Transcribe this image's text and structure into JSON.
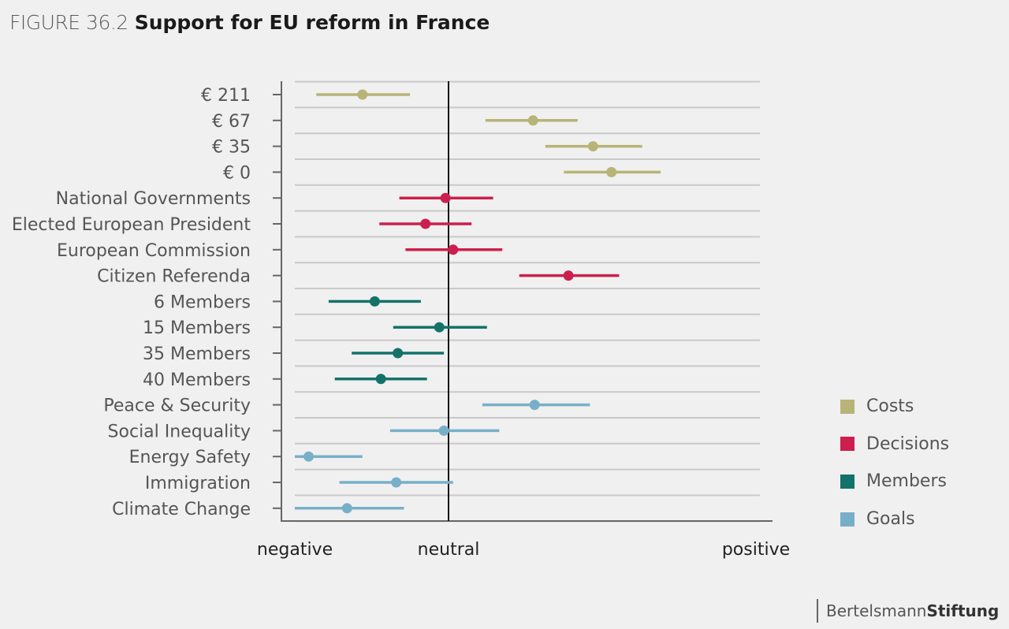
{
  "figure": {
    "number": "FIGURE 36.2",
    "title": "Support for EU reform in France"
  },
  "brand": {
    "part1": "Bertelsmann",
    "part2": "Stiftung"
  },
  "chart_data": {
    "type": "scatter",
    "title": "Support for EU reform in France",
    "xlabel": "",
    "ylabel": "",
    "x_tick_labels": [
      {
        "label": "negative",
        "value": -1
      },
      {
        "label": "neutral",
        "value": 0
      },
      {
        "label": "positive",
        "value": 2
      }
    ],
    "xlim": [
      -1,
      2
    ],
    "neutral_line": 0,
    "grid": true,
    "legend_position": "right",
    "categories": [
      "€ 211",
      "€ 67",
      "€ 35",
      "€ 0",
      "National Governments",
      "Elected European President",
      "European Commission",
      "Citizen Referenda",
      "6 Members",
      "15 Members",
      "35 Members",
      "40 Members",
      "Peace & Security",
      "Social Inequality",
      "Energy Safety",
      "Immigration",
      "Climate Change"
    ],
    "series": [
      {
        "name": "Costs",
        "color": "#b8b477",
        "points": [
          {
            "label": "€ 211",
            "estimate": -0.56,
            "low": -0.86,
            "high": -0.25
          },
          {
            "label": "€ 67",
            "estimate": 0.55,
            "low": 0.24,
            "high": 0.84
          },
          {
            "label": "€ 35",
            "estimate": 0.94,
            "low": 0.63,
            "high": 1.26
          },
          {
            "label": "€ 0",
            "estimate": 1.06,
            "low": 0.75,
            "high": 1.38
          }
        ]
      },
      {
        "name": "Decisions",
        "color": "#cc1f4d",
        "points": [
          {
            "label": "National Governments",
            "estimate": -0.02,
            "low": -0.32,
            "high": 0.29
          },
          {
            "label": "Elected European President",
            "estimate": -0.15,
            "low": -0.45,
            "high": 0.15
          },
          {
            "label": "European Commission",
            "estimate": 0.03,
            "low": -0.28,
            "high": 0.35
          },
          {
            "label": "Citizen Referenda",
            "estimate": 0.78,
            "low": 0.46,
            "high": 1.11
          }
        ]
      },
      {
        "name": "Members",
        "color": "#13736a",
        "points": [
          {
            "label": "6 Members",
            "estimate": -0.48,
            "low": -0.78,
            "high": -0.18
          },
          {
            "label": "15 Members",
            "estimate": -0.06,
            "low": -0.36,
            "high": 0.25
          },
          {
            "label": "35 Members",
            "estimate": -0.33,
            "low": -0.63,
            "high": -0.03
          },
          {
            "label": "40 Members",
            "estimate": -0.44,
            "low": -0.74,
            "high": -0.14
          }
        ]
      },
      {
        "name": "Goals",
        "color": "#78afc8",
        "points": [
          {
            "label": "Peace & Security",
            "estimate": 0.56,
            "low": 0.22,
            "high": 0.92
          },
          {
            "label": "Social Inequality",
            "estimate": -0.03,
            "low": -0.38,
            "high": 0.33
          },
          {
            "label": "Energy Safety",
            "estimate": -0.91,
            "low": -1.0,
            "high": -0.56
          },
          {
            "label": "Immigration",
            "estimate": -0.34,
            "low": -0.71,
            "high": 0.03
          },
          {
            "label": "Climate Change",
            "estimate": -0.66,
            "low": -1.0,
            "high": -0.29
          }
        ]
      }
    ]
  }
}
